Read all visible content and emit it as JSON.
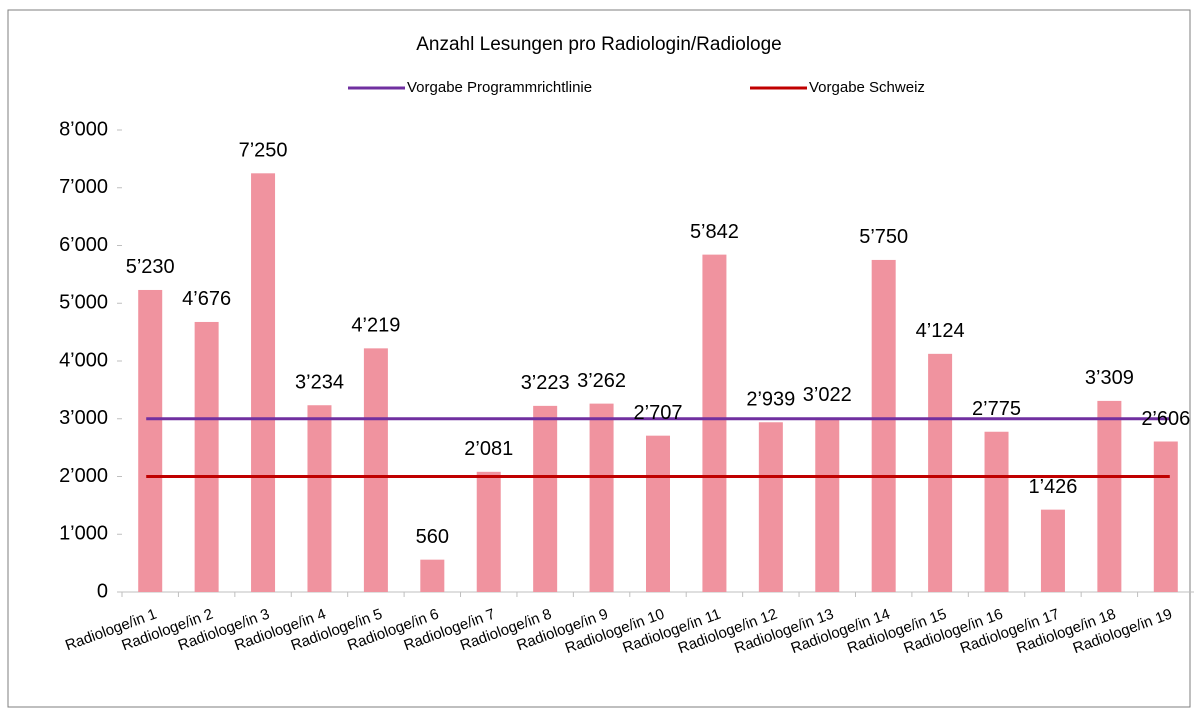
{
  "chart_data": {
    "type": "bar",
    "title": "Anzahl Lesungen pro Radiologin/Radiologe",
    "categories": [
      "Radiologe/in 1",
      "Radiologe/in 2",
      "Radiologe/in 3",
      "Radiologe/in 4",
      "Radiologe/in 5",
      "Radiologe/in 6",
      "Radiologe/in 7",
      "Radiologe/in 8",
      "Radiologe/in 9",
      "Radiologe/in 10",
      "Radiologe/in 11",
      "Radiologe/in 12",
      "Radiologe/in 13",
      "Radiologe/in 14",
      "Radiologe/in 15",
      "Radiologe/in 16",
      "Radiologe/in 17",
      "Radiologe/in 18",
      "Radiologe/in 19"
    ],
    "values": [
      5230,
      4676,
      7250,
      3234,
      4219,
      560,
      2081,
      3223,
      3262,
      2707,
      5842,
      2939,
      3022,
      5750,
      4124,
      2775,
      1426,
      3309,
      2606
    ],
    "value_labels": [
      "5’230",
      "4’676",
      "7’250",
      "3’234",
      "4’219",
      "560",
      "2’081",
      "3’223",
      "3’262",
      "2’707",
      "5’842",
      "2’939",
      "3’022",
      "5’750",
      "4’124",
      "2’775",
      "1’426",
      "3’309",
      "2’606"
    ],
    "color": "#f0939f",
    "reference_lines": [
      {
        "name": "Vorgabe Programmrichtlinie",
        "color": "#7030a0",
        "value": 3000
      },
      {
        "name": "Vorgabe Schweiz",
        "color": "#c00000",
        "value": 2000
      }
    ],
    "ylim": [
      0,
      8000
    ],
    "yticks": [
      0,
      {
        "value": 1000,
        "label": "1’000"
      },
      {
        "value": 2000,
        "label": "2’000"
      },
      {
        "value": 3000,
        "label": "3’000"
      },
      {
        "value": 4000,
        "label": "4’000"
      },
      {
        "value": 5000,
        "label": "5’000"
      },
      {
        "value": 6000,
        "label": "6’000"
      },
      {
        "value": 7000,
        "label": "7’000"
      },
      {
        "value": 8000,
        "label": "8’000"
      }
    ],
    "grid": false
  }
}
